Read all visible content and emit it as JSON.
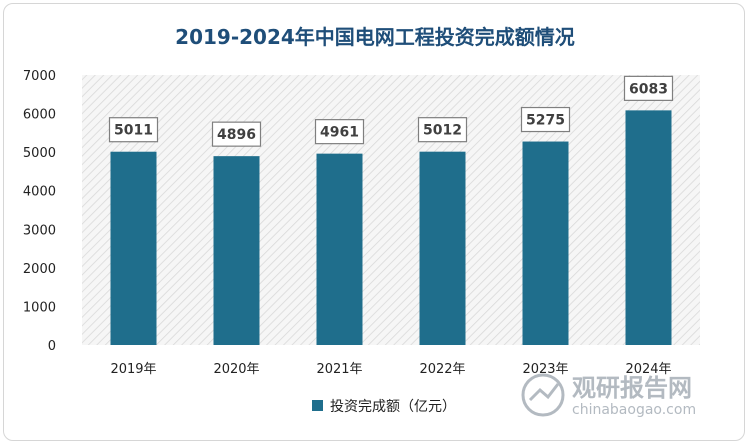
{
  "chart_data": {
    "type": "bar",
    "title": "2019-2024年中国电网工程投资完成额情况",
    "categories": [
      "2019年",
      "2020年",
      "2021年",
      "2022年",
      "2023年",
      "2024年"
    ],
    "series": [
      {
        "name": "投资完成额（亿元）",
        "values": [
          5011,
          4896,
          4961,
          5012,
          5275,
          6083
        ]
      }
    ],
    "ylim": [
      0,
      7000
    ],
    "yticks": [
      0,
      1000,
      2000,
      3000,
      4000,
      5000,
      6000,
      7000
    ],
    "xlabel": "",
    "ylabel": "",
    "legend_position": "bottom",
    "grid": false,
    "bar_color": "#1f6e8c",
    "title_color": "#1f4e79"
  },
  "watermark": {
    "main": "观研报告网",
    "sub": "chinabaogao.com"
  }
}
